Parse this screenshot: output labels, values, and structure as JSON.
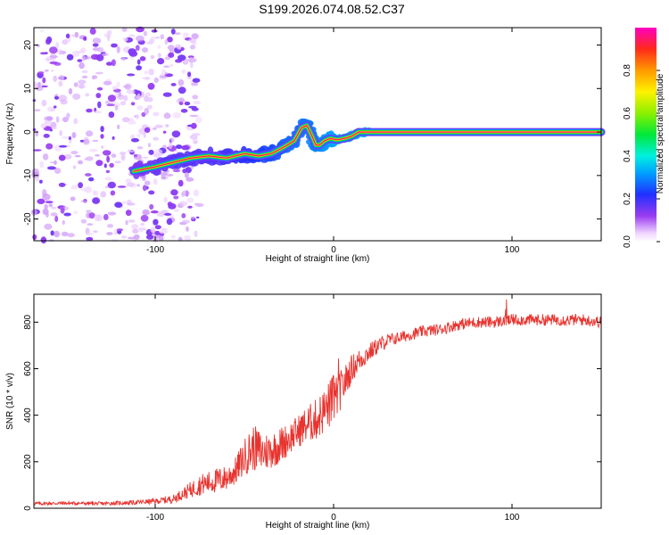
{
  "title": "S199.2026.074.08.52.C37",
  "colors": {
    "snr_line": "#e8332e",
    "ridge": "#e8175d",
    "frame": "#000000"
  },
  "chart_data": [
    {
      "type": "heatmap",
      "xlabel": "Height of straight line (km)",
      "ylabel": "Frequency (Hz)",
      "xlim": [
        -168,
        150
      ],
      "ylim": [
        -25,
        24
      ],
      "x_ticks": [
        -100,
        0,
        100
      ],
      "x_tick_labels": [
        "-100",
        "0",
        "100"
      ],
      "y_ticks": [
        -20,
        -10,
        0,
        10,
        20
      ],
      "y_tick_labels": [
        "-20",
        "-10",
        "0",
        "10",
        "20"
      ],
      "colorbar": {
        "label": "Normalized spectral amplitude",
        "range": [
          0.0,
          1.0
        ],
        "ticks": [
          0.0,
          0.2,
          0.4,
          0.6,
          0.8
        ],
        "tick_labels": [
          "0.0",
          "0.2",
          "0.4",
          "0.6",
          "0.8"
        ]
      },
      "ridge": {
        "x": [
          -112,
          -100,
          -90,
          -80,
          -70,
          -60,
          -50,
          -42,
          -35,
          -28,
          -22,
          -18,
          -15,
          -12,
          -10,
          -8,
          -5,
          -2,
          2,
          6,
          10,
          14,
          20,
          150
        ],
        "y": [
          -9,
          -8,
          -7,
          -6,
          -5.5,
          -6,
          -5,
          -5.5,
          -5,
          -3.5,
          -2,
          1,
          1.5,
          -1,
          -3,
          -3,
          -2,
          -1.5,
          -1.8,
          -1.5,
          -1,
          0,
          0,
          0
        ],
        "amplitude": [
          0.4,
          0.45,
          0.5,
          0.5,
          0.5,
          0.55,
          0.6,
          0.65,
          0.7,
          0.75,
          0.8,
          0.8,
          0.8,
          0.85,
          0.85,
          0.85,
          0.9,
          0.9,
          0.95,
          0.95,
          1.0,
          1.0,
          1.0,
          1.0
        ]
      },
      "noise_region": {
        "x_range": [
          -168,
          -90
        ],
        "y_range": [
          -25,
          24
        ],
        "amplitude": 0.05
      }
    },
    {
      "type": "line",
      "xlabel": "Height of straight line (km)",
      "ylabel": "SNR (10 * v/v)",
      "xlim": [
        -168,
        150
      ],
      "ylim": [
        0,
        920
      ],
      "x_ticks": [
        -100,
        0,
        100
      ],
      "x_tick_labels": [
        "-100",
        "0",
        "100"
      ],
      "y_ticks": [
        0,
        200,
        400,
        600,
        800
      ],
      "y_tick_labels": [
        "0",
        "200",
        "400",
        "600",
        "800"
      ],
      "series": [
        {
          "name": "SNR",
          "x": [
            -168,
            -150,
            -130,
            -110,
            -100,
            -90,
            -85,
            -80,
            -75,
            -70,
            -65,
            -60,
            -55,
            -50,
            -45,
            -40,
            -35,
            -30,
            -25,
            -20,
            -15,
            -10,
            -5,
            0,
            5,
            10,
            15,
            20,
            25,
            30,
            40,
            50,
            60,
            70,
            80,
            90,
            100,
            110,
            120,
            130,
            140,
            150
          ],
          "values": [
            20,
            22,
            20,
            25,
            30,
            40,
            60,
            80,
            100,
            110,
            120,
            130,
            160,
            220,
            260,
            240,
            250,
            270,
            300,
            330,
            360,
            380,
            420,
            470,
            520,
            600,
            640,
            670,
            700,
            720,
            740,
            760,
            770,
            790,
            800,
            800,
            810,
            810,
            810,
            810,
            810,
            800
          ],
          "noise": [
            8,
            8,
            8,
            10,
            12,
            18,
            25,
            35,
            45,
            50,
            55,
            55,
            60,
            80,
            100,
            90,
            80,
            80,
            70,
            70,
            80,
            90,
            100,
            110,
            80,
            60,
            50,
            40,
            35,
            30,
            25,
            25,
            25,
            25,
            25,
            25,
            25,
            25,
            25,
            25,
            25,
            25
          ]
        }
      ]
    }
  ]
}
